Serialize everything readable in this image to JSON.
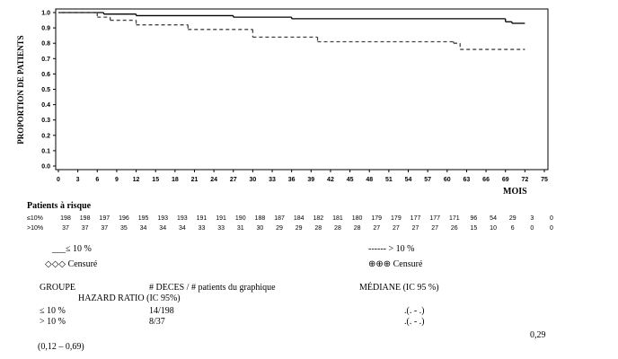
{
  "chart_data": {
    "type": "line",
    "ylabel": "PROPORTION DE PATIENTS",
    "xlabel": "MOIS",
    "xlim": [
      0,
      75
    ],
    "ylim": [
      0,
      1
    ],
    "xticks": [
      0,
      3,
      6,
      9,
      12,
      15,
      18,
      21,
      24,
      27,
      30,
      33,
      36,
      39,
      42,
      45,
      48,
      51,
      54,
      57,
      60,
      63,
      66,
      69,
      72,
      75
    ],
    "yticks": [
      {
        "value": 0,
        "label": "0.0"
      },
      0.1,
      0.2,
      0.3,
      0.4,
      0.5,
      0.6,
      0.7,
      0.8,
      0.9,
      {
        "value": 1,
        "label": "1.0"
      }
    ],
    "series": [
      {
        "name": "≤ 10 %",
        "color": "#000000",
        "style": "solid",
        "x": [
          0,
          7,
          12,
          27,
          36,
          69,
          70,
          72
        ],
        "values": [
          1,
          0.99,
          0.98,
          0.97,
          0.96,
          0.94,
          0.93,
          0.93
        ]
      },
      {
        "name": "> 10 %",
        "color": "#444444",
        "style": "dashed",
        "x": [
          0,
          6,
          8,
          12,
          20,
          30,
          40,
          61,
          62,
          72
        ],
        "values": [
          1,
          0.97,
          0.95,
          0.92,
          0.89,
          0.84,
          0.81,
          0.8,
          0.76,
          0.76
        ]
      }
    ]
  },
  "risk_table": {
    "title": "Patients à risque",
    "rows": [
      {
        "label": "≤10%",
        "values": [
          198,
          198,
          197,
          196,
          195,
          193,
          193,
          191,
          191,
          190,
          188,
          187,
          184,
          182,
          181,
          180,
          179,
          179,
          177,
          177,
          171,
          96,
          54,
          29,
          3,
          0
        ]
      },
      {
        "label": ">10%",
        "values": [
          37,
          37,
          37,
          35,
          34,
          34,
          34,
          33,
          33,
          31,
          30,
          29,
          29,
          28,
          28,
          28,
          27,
          27,
          27,
          27,
          26,
          15,
          10,
          6,
          0,
          0
        ]
      }
    ]
  },
  "legend": {
    "solid": "___≤ 10 %",
    "dashed": "------ > 10 %",
    "censored_solid": "◇◇◇ Censuré",
    "censored_dashed": "⊕⊕⊕ Censuré"
  },
  "summary": {
    "headers": [
      "GROUPE",
      "# DECES / # patients du graphique",
      "MÉDIANE (IC 95 %)",
      "HAZARD RATIO (IC 95%)"
    ],
    "rows": [
      [
        "≤ 10 %",
        "14/198",
        ".(. - .)"
      ],
      [
        "> 10 %",
        "8/37",
        ".(. - .)"
      ]
    ],
    "hazard_ratio": "0,29",
    "ci": "(0,12 – 0,69)"
  }
}
